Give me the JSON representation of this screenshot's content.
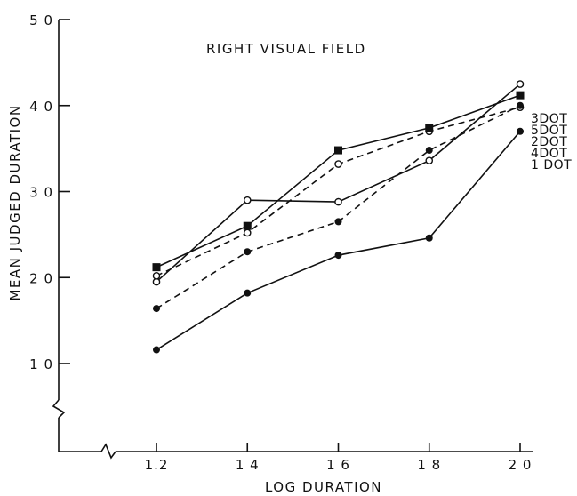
{
  "chart_data": {
    "type": "line",
    "title": "RIGHT VISUAL FIELD",
    "xlabel": "LOG DURATION",
    "ylabel": "MEAN JUDGED DURATION",
    "x": [
      1.2,
      1.4,
      1.6,
      1.8,
      2.0
    ],
    "x_tick_labels": [
      "1.2",
      "1 4",
      "1 6",
      "1 8",
      "2 0"
    ],
    "ylim": [
      0,
      50
    ],
    "y_ticks": [
      10,
      20,
      30,
      40,
      50
    ],
    "y_tick_labels": [
      "1 0",
      "2 0",
      "3 0",
      "4 0",
      "5 0"
    ],
    "grid": false,
    "series": [
      {
        "name": "3 DOT",
        "marker": "open-circle",
        "line": "solid",
        "values": [
          19.5,
          29.0,
          28.8,
          33.6,
          42.5
        ]
      },
      {
        "name": "5 DOT",
        "marker": "open-circle",
        "line": "dashed",
        "values": [
          20.2,
          25.2,
          33.2,
          37.0,
          39.8
        ]
      },
      {
        "name": "2 DOT",
        "marker": "filled-square",
        "line": "solid",
        "values": [
          21.2,
          26.0,
          34.8,
          37.4,
          41.2
        ]
      },
      {
        "name": "4 DOT",
        "marker": "filled-circle",
        "line": "dashed",
        "values": [
          16.4,
          23.0,
          26.5,
          34.8,
          40.0
        ]
      },
      {
        "name": "1 DOT",
        "marker": "filled-circle",
        "line": "solid",
        "values": [
          11.6,
          18.2,
          22.6,
          24.6,
          37.0
        ]
      }
    ],
    "legend_labels": [
      "3DOT",
      "5DOT",
      "2DOT",
      "4DOT",
      "1 DOT"
    ],
    "legend_position": "right"
  }
}
